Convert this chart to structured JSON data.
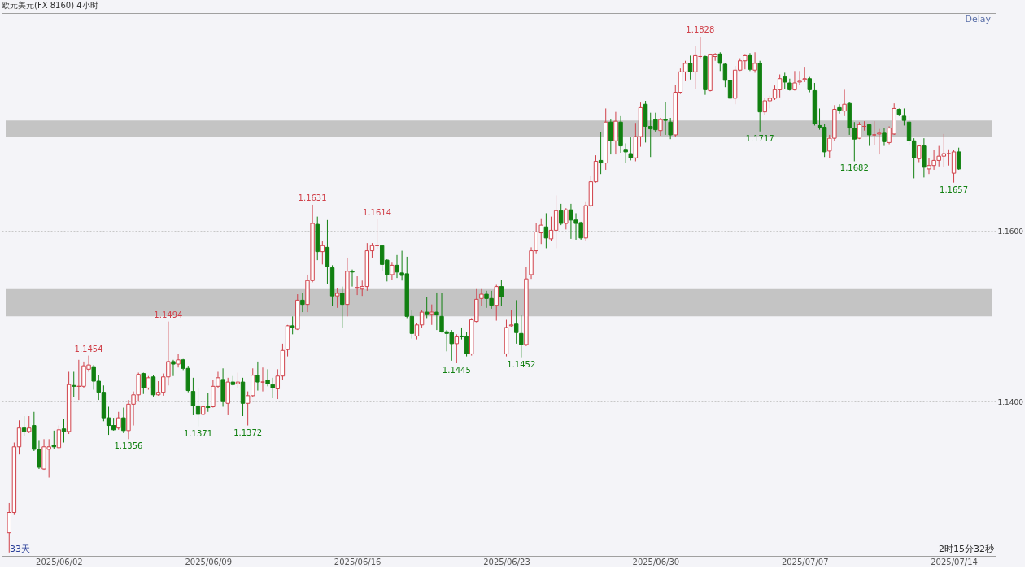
{
  "chart_data": {
    "type": "candlestick",
    "title": "欧元美元(FX 8160)  4小时",
    "categories": [
      null,
      null,
      null,
      null,
      null,
      null,
      null,
      null,
      null,
      null,
      "2025/06/02",
      null,
      null,
      null,
      null,
      null,
      null,
      null,
      null,
      null,
      null,
      null,
      null,
      null,
      null,
      null,
      null,
      null,
      null,
      null,
      null,
      null,
      null,
      null,
      null,
      null,
      null,
      null,
      null,
      null,
      "2025/06/09",
      null,
      null,
      null,
      null,
      null,
      null,
      null,
      null,
      null,
      null,
      null,
      null,
      null,
      null,
      null,
      null,
      null,
      null,
      null,
      null,
      null,
      null,
      null,
      null,
      null,
      null,
      null,
      null,
      null,
      "2025/06/16",
      null,
      null,
      null,
      null,
      null,
      null,
      null,
      null,
      null,
      null,
      null,
      null,
      null,
      null,
      null,
      null,
      null,
      null,
      null,
      null,
      null,
      null,
      null,
      null,
      null,
      null,
      null,
      null,
      null,
      "2025/06/23",
      null,
      null,
      null,
      null,
      null,
      null,
      null,
      null,
      null,
      null,
      null,
      null,
      null,
      null,
      null,
      null,
      null,
      null,
      null,
      null,
      null,
      null,
      null,
      null,
      null,
      null,
      null,
      null,
      null,
      "2025/06/30",
      null,
      null,
      null,
      null,
      null,
      null,
      null,
      null,
      null,
      null,
      null,
      null,
      null,
      null,
      null,
      null,
      null,
      null,
      null,
      null,
      null,
      null,
      null,
      null,
      null,
      null,
      null,
      null,
      null,
      "2025/07/07",
      null,
      null,
      null,
      null,
      null,
      null,
      null,
      null,
      null,
      null,
      null,
      null,
      null,
      null,
      null,
      null,
      null,
      null,
      null,
      null,
      null,
      null,
      null,
      null,
      null,
      null,
      null,
      null,
      null,
      "2025/07/14",
      null
    ],
    "ohlc": [
      [
        1.1246,
        1.1281,
        1.1223,
        1.127
      ],
      [
        1.127,
        1.1352,
        1.1267,
        1.1347
      ],
      [
        1.1347,
        1.1378,
        1.1338,
        1.1369
      ],
      [
        1.1369,
        1.1383,
        1.136,
        1.1365
      ],
      [
        1.1365,
        1.1383,
        1.1363,
        1.1369
      ],
      [
        1.1372,
        1.1388,
        1.1342,
        1.1344
      ],
      [
        1.1344,
        1.1354,
        1.1321,
        1.1323
      ],
      [
        1.1321,
        1.1356,
        1.132,
        1.1347
      ],
      [
        1.1344,
        1.1356,
        1.1311,
        1.1347
      ],
      [
        1.1349,
        1.1366,
        1.1344,
        1.1347
      ],
      [
        1.1346,
        1.1372,
        1.1345,
        1.1367
      ],
      [
        1.1368,
        1.138,
        1.1352,
        1.1365
      ],
      [
        1.1365,
        1.1435,
        1.1362,
        1.142
      ],
      [
        1.1419,
        1.1435,
        1.1405,
        1.1418
      ],
      [
        1.1418,
        1.1449,
        1.1402,
        1.1418
      ],
      [
        1.1418,
        1.1447,
        1.1416,
        1.1442
      ],
      [
        1.1438,
        1.1454,
        1.1435,
        1.1443
      ],
      [
        1.1441,
        1.1443,
        1.1414,
        1.1424
      ],
      [
        1.1424,
        1.1431,
        1.1402,
        1.1411
      ],
      [
        1.1411,
        1.1419,
        1.1377,
        1.1381
      ],
      [
        1.1381,
        1.1394,
        1.1361,
        1.1372
      ],
      [
        1.1372,
        1.1381,
        1.1366,
        1.1367
      ],
      [
        1.1369,
        1.1388,
        1.1367,
        1.1381
      ],
      [
        1.1381,
        1.1393,
        1.1363,
        1.1366
      ],
      [
        1.1366,
        1.1402,
        1.1356,
        1.1397
      ],
      [
        1.1397,
        1.1412,
        1.1372,
        1.1408
      ],
      [
        1.1408,
        1.1434,
        1.14,
        1.1432
      ],
      [
        1.1433,
        1.1434,
        1.1409,
        1.1416
      ],
      [
        1.1416,
        1.143,
        1.1414,
        1.1428
      ],
      [
        1.1429,
        1.1431,
        1.1406,
        1.1408
      ],
      [
        1.1408,
        1.1424,
        1.1407,
        1.1411
      ],
      [
        1.1411,
        1.1433,
        1.1407,
        1.1429
      ],
      [
        1.1429,
        1.1494,
        1.1419,
        1.1447
      ],
      [
        1.1447,
        1.1449,
        1.143,
        1.1444
      ],
      [
        1.1444,
        1.1456,
        1.144,
        1.1449
      ],
      [
        1.1449,
        1.145,
        1.1437,
        1.1439
      ],
      [
        1.1439,
        1.1442,
        1.1411,
        1.1413
      ],
      [
        1.1412,
        1.1428,
        1.1384,
        1.1395
      ],
      [
        1.1395,
        1.1416,
        1.1371,
        1.1385
      ],
      [
        1.1385,
        1.1395,
        1.1384,
        1.1394
      ],
      [
        1.1394,
        1.141,
        1.1388,
        1.1393
      ],
      [
        1.1394,
        1.1425,
        1.1393,
        1.1418
      ],
      [
        1.1418,
        1.1435,
        1.1416,
        1.1428
      ],
      [
        1.1426,
        1.1439,
        1.1394,
        1.14
      ],
      [
        1.1398,
        1.1428,
        1.1384,
        1.1423
      ],
      [
        1.1423,
        1.143,
        1.1419,
        1.142
      ],
      [
        1.1421,
        1.1434,
        1.1416,
        1.1423
      ],
      [
        1.1423,
        1.1428,
        1.1383,
        1.1398
      ],
      [
        1.1398,
        1.1412,
        1.1372,
        1.1407
      ],
      [
        1.1407,
        1.1439,
        1.1405,
        1.1431
      ],
      [
        1.1431,
        1.1447,
        1.1413,
        1.1423
      ],
      [
        1.1423,
        1.144,
        1.1412,
        1.1423
      ],
      [
        1.1425,
        1.1438,
        1.1418,
        1.1421
      ],
      [
        1.142,
        1.1428,
        1.1404,
        1.1416
      ],
      [
        1.1415,
        1.1438,
        1.1403,
        1.143
      ],
      [
        1.143,
        1.1468,
        1.1425,
        1.146
      ],
      [
        1.1461,
        1.149,
        1.1453,
        1.1489
      ],
      [
        1.1489,
        1.15,
        1.1479,
        1.1487
      ],
      [
        1.1485,
        1.1526,
        1.1484,
        1.1519
      ],
      [
        1.1519,
        1.1527,
        1.1505,
        1.1514
      ],
      [
        1.1514,
        1.1549,
        1.1505,
        1.1542
      ],
      [
        1.1542,
        1.1631,
        1.154,
        1.1609
      ],
      [
        1.1608,
        1.1617,
        1.1566,
        1.1576
      ],
      [
        1.1576,
        1.1588,
        1.1561,
        1.1583
      ],
      [
        1.1581,
        1.1613,
        1.1538,
        1.1558
      ],
      [
        1.1557,
        1.156,
        1.1512,
        1.1524
      ],
      [
        1.1524,
        1.1533,
        1.151,
        1.1527
      ],
      [
        1.1527,
        1.1535,
        1.1487,
        1.1514
      ],
      [
        1.1514,
        1.1569,
        1.15,
        1.1553
      ],
      [
        1.1553,
        1.1555,
        1.1535,
        1.1552
      ],
      [
        1.1533,
        1.1547,
        1.1525,
        1.1534
      ],
      [
        1.1532,
        1.1542,
        1.1524,
        1.1535
      ],
      [
        1.1535,
        1.1586,
        1.153,
        1.1577
      ],
      [
        1.1577,
        1.1586,
        1.1569,
        1.1583
      ],
      [
        1.1583,
        1.1614,
        1.1579,
        1.1583
      ],
      [
        1.1583,
        1.1584,
        1.1553,
        1.1561
      ],
      [
        1.1566,
        1.1567,
        1.1541,
        1.1549
      ],
      [
        1.1549,
        1.1563,
        1.1543,
        1.156
      ],
      [
        1.156,
        1.1572,
        1.1545,
        1.1552
      ],
      [
        1.1551,
        1.1577,
        1.1542,
        1.1548
      ],
      [
        1.155,
        1.157,
        1.1498,
        1.15
      ],
      [
        1.15,
        1.1507,
        1.1474,
        1.148
      ],
      [
        1.1477,
        1.1492,
        1.1473,
        1.149
      ],
      [
        1.149,
        1.1507,
        1.1487,
        1.1505
      ],
      [
        1.1505,
        1.1523,
        1.1498,
        1.1503
      ],
      [
        1.1503,
        1.1514,
        1.149,
        1.1505
      ],
      [
        1.1505,
        1.1528,
        1.1484,
        1.1502
      ],
      [
        1.15,
        1.1527,
        1.1481,
        1.1482
      ],
      [
        1.1482,
        1.1484,
        1.1459,
        1.148
      ],
      [
        1.1481,
        1.1484,
        1.1448,
        1.1468
      ],
      [
        1.1468,
        1.1479,
        1.1445,
        1.1476
      ],
      [
        1.1477,
        1.1487,
        1.1473,
        1.1476
      ],
      [
        1.1476,
        1.1482,
        1.1453,
        1.1456
      ],
      [
        1.1456,
        1.1498,
        1.1454,
        1.1496
      ],
      [
        1.1494,
        1.1532,
        1.1493,
        1.152
      ],
      [
        1.1521,
        1.1532,
        1.1512,
        1.1526
      ],
      [
        1.1526,
        1.153,
        1.151,
        1.1521
      ],
      [
        1.1521,
        1.153,
        1.1509,
        1.1513
      ],
      [
        1.1513,
        1.1537,
        1.1495,
        1.1535
      ],
      [
        1.1535,
        1.1543,
        1.1512,
        1.1523
      ],
      [
        1.1456,
        1.1496,
        1.1453,
        1.1487
      ],
      [
        1.1489,
        1.1507,
        1.1488,
        1.149
      ],
      [
        1.1491,
        1.1519,
        1.1468,
        1.1481
      ],
      [
        1.148,
        1.1501,
        1.1452,
        1.1467
      ],
      [
        1.1467,
        1.1558,
        1.1465,
        1.1544
      ],
      [
        1.1549,
        1.1581,
        1.1544,
        1.1577
      ],
      [
        1.1577,
        1.1609,
        1.1574,
        1.1599
      ],
      [
        1.1598,
        1.1615,
        1.1585,
        1.1607
      ],
      [
        1.1605,
        1.1621,
        1.158,
        1.1592
      ],
      [
        1.1591,
        1.1617,
        1.1589,
        1.1601
      ],
      [
        1.1601,
        1.1642,
        1.158,
        1.1624
      ],
      [
        1.1624,
        1.1632,
        1.1607,
        1.1609
      ],
      [
        1.1609,
        1.1627,
        1.1602,
        1.1625
      ],
      [
        1.1625,
        1.1632,
        1.1591,
        1.1613
      ],
      [
        1.1613,
        1.1621,
        1.159,
        1.1609
      ],
      [
        1.161,
        1.1611,
        1.159,
        1.1592
      ],
      [
        1.1592,
        1.1635,
        1.1589,
        1.163
      ],
      [
        1.163,
        1.1665,
        1.1628,
        1.1658
      ],
      [
        1.1658,
        1.1689,
        1.1657,
        1.1682
      ],
      [
        1.1683,
        1.1716,
        1.1667,
        1.168
      ],
      [
        1.168,
        1.1744,
        1.1672,
        1.1728
      ],
      [
        1.1728,
        1.1731,
        1.169,
        1.1706
      ],
      [
        1.1706,
        1.174,
        1.169,
        1.1729
      ],
      [
        1.1728,
        1.1735,
        1.1692,
        1.17
      ],
      [
        1.1696,
        1.1703,
        1.168,
        1.1693
      ],
      [
        1.1691,
        1.171,
        1.1683,
        1.1686
      ],
      [
        1.1686,
        1.1727,
        1.1682,
        1.1711
      ],
      [
        1.1711,
        1.1751,
        1.1699,
        1.1745
      ],
      [
        1.1749,
        1.1753,
        1.1704,
        1.1723
      ],
      [
        1.1723,
        1.1739,
        1.1687,
        1.172
      ],
      [
        1.1731,
        1.1739,
        1.1716,
        1.1719
      ],
      [
        1.1718,
        1.1733,
        1.1712,
        1.1731
      ],
      [
        1.1731,
        1.1752,
        1.1713,
        1.173
      ],
      [
        1.1728,
        1.1733,
        1.1708,
        1.1713
      ],
      [
        1.1713,
        1.1772,
        1.1711,
        1.1763
      ],
      [
        1.1763,
        1.1791,
        1.1761,
        1.1787
      ],
      [
        1.1787,
        1.18,
        1.1776,
        1.1797
      ],
      [
        1.1797,
        1.1806,
        1.1778,
        1.1787
      ],
      [
        1.1787,
        1.1817,
        1.1767,
        1.1806
      ],
      [
        1.1805,
        1.1828,
        1.1803,
        1.1805
      ],
      [
        1.1805,
        1.1806,
        1.176,
        1.1766
      ],
      [
        1.1765,
        1.1808,
        1.1764,
        1.1807
      ],
      [
        1.1805,
        1.1809,
        1.18,
        1.1807
      ],
      [
        1.1808,
        1.181,
        1.1788,
        1.1797
      ],
      [
        1.1796,
        1.1797,
        1.1769,
        1.1777
      ],
      [
        1.1777,
        1.1779,
        1.1747,
        1.1756
      ],
      [
        1.1756,
        1.1794,
        1.1749,
        1.1789
      ],
      [
        1.1789,
        1.1803,
        1.1788,
        1.18
      ],
      [
        1.18,
        1.1807,
        1.179,
        1.1806
      ],
      [
        1.1806,
        1.1809,
        1.1788,
        1.179
      ],
      [
        1.1789,
        1.181,
        1.1786,
        1.1797
      ],
      [
        1.1797,
        1.18,
        1.1717,
        1.174
      ],
      [
        1.174,
        1.1756,
        1.1736,
        1.1753
      ],
      [
        1.1753,
        1.1759,
        1.1744,
        1.1756
      ],
      [
        1.1756,
        1.1771,
        1.1754,
        1.1766
      ],
      [
        1.1766,
        1.1784,
        1.1757,
        1.1779
      ],
      [
        1.1781,
        1.1786,
        1.1767,
        1.1775
      ],
      [
        1.1774,
        1.1779,
        1.1765,
        1.1766
      ],
      [
        1.1766,
        1.1788,
        1.1765,
        1.1774
      ],
      [
        1.1775,
        1.1788,
        1.1772,
        1.1776
      ],
      [
        1.1778,
        1.1792,
        1.1775,
        1.1779
      ],
      [
        1.1779,
        1.1781,
        1.1763,
        1.1766
      ],
      [
        1.1765,
        1.1774,
        1.1724,
        1.1726
      ],
      [
        1.1724,
        1.1744,
        1.1719,
        1.1722
      ],
      [
        1.1722,
        1.1726,
        1.1687,
        1.1693
      ],
      [
        1.1694,
        1.1713,
        1.1686,
        1.1709
      ],
      [
        1.1709,
        1.1748,
        1.1706,
        1.1743
      ],
      [
        1.1745,
        1.1749,
        1.1738,
        1.1742
      ],
      [
        1.1741,
        1.1766,
        1.1735,
        1.1749
      ],
      [
        1.175,
        1.1751,
        1.1713,
        1.1721
      ],
      [
        1.1721,
        1.1728,
        1.1682,
        1.1708
      ],
      [
        1.1709,
        1.1728,
        1.1708,
        1.1725
      ],
      [
        1.1723,
        1.1729,
        1.1718,
        1.1723
      ],
      [
        1.1725,
        1.1726,
        1.17,
        1.1713
      ],
      [
        1.1713,
        1.1729,
        1.1701,
        1.1713
      ],
      [
        1.1714,
        1.172,
        1.169,
        1.1715
      ],
      [
        1.1715,
        1.1721,
        1.17,
        1.1705
      ],
      [
        1.1704,
        1.1723,
        1.1702,
        1.1721
      ],
      [
        1.1714,
        1.175,
        1.1713,
        1.1744
      ],
      [
        1.1743,
        1.1744,
        1.1735,
        1.1737
      ],
      [
        1.1735,
        1.1744,
        1.1724,
        1.173
      ],
      [
        1.1728,
        1.1735,
        1.1701,
        1.1706
      ],
      [
        1.1706,
        1.1709,
        1.1662,
        1.1686
      ],
      [
        1.1685,
        1.1701,
        1.1681,
        1.17
      ],
      [
        1.17,
        1.1709,
        1.1663,
        1.1675
      ],
      [
        1.1673,
        1.1686,
        1.1667,
        1.1677
      ],
      [
        1.1677,
        1.1695,
        1.1672,
        1.1683
      ],
      [
        1.1683,
        1.17,
        1.1676,
        1.1688
      ],
      [
        1.1688,
        1.1714,
        1.1675,
        1.1691
      ],
      [
        1.1691,
        1.1696,
        1.1677,
        1.1691
      ],
      [
        1.1668,
        1.1695,
        1.1657,
        1.1693
      ],
      [
        1.1693,
        1.1698,
        1.1672,
        1.1673
      ]
    ],
    "colors": [
      "#d0414a",
      "#d0414a",
      "#d0414a",
      "#118011",
      "#d0414a",
      "#118011",
      "#118011",
      "#d0414a",
      "#d0414a",
      "#118011",
      "#d0414a",
      "#118011",
      "#d0414a",
      "#118011",
      "#d0414a",
      "#d0414a",
      "#d0414a",
      "#118011",
      "#118011",
      "#118011",
      "#118011",
      "#118011",
      "#d0414a",
      "#118011",
      "#d0414a",
      "#d0414a",
      "#d0414a",
      "#118011",
      "#d0414a",
      "#118011",
      "#d0414a",
      "#d0414a",
      "#d0414a",
      "#118011",
      "#d0414a",
      "#118011",
      "#118011",
      "#118011",
      "#118011",
      "#d0414a",
      "#118011",
      "#d0414a",
      "#d0414a",
      "#118011",
      "#d0414a",
      "#118011",
      "#d0414a",
      "#118011",
      "#d0414a",
      "#d0414a",
      "#118011",
      "#d0414a",
      "#118011",
      "#118011",
      "#d0414a",
      "#d0414a",
      "#d0414a",
      "#118011",
      "#d0414a",
      "#118011",
      "#d0414a",
      "#d0414a",
      "#118011",
      "#d0414a",
      "#118011",
      "#118011",
      "#d0414a",
      "#118011",
      "#d0414a",
      "#118011",
      "#d0414a",
      "#d0414a",
      "#d0414a",
      "#d0414a",
      "#d0414a",
      "#118011",
      "#118011",
      "#d0414a",
      "#118011",
      "#118011",
      "#118011",
      "#118011",
      "#d0414a",
      "#d0414a",
      "#118011",
      "#d0414a",
      "#118011",
      "#118011",
      "#118011",
      "#118011",
      "#d0414a",
      "#118011",
      "#118011",
      "#d0414a",
      "#d0414a",
      "#d0414a",
      "#118011",
      "#118011",
      "#d0414a",
      "#118011",
      "#d0414a",
      "#d0414a",
      "#118011",
      "#118011",
      "#d0414a",
      "#d0414a",
      "#d0414a",
      "#d0414a",
      "#118011",
      "#d0414a",
      "#d0414a",
      "#118011",
      "#d0414a",
      "#118011",
      "#118011",
      "#118011",
      "#d0414a",
      "#d0414a",
      "#d0414a",
      "#118011",
      "#d0414a",
      "#118011",
      "#d0414a",
      "#118011",
      "#118011",
      "#118011",
      "#d0414a",
      "#d0414a",
      "#118011",
      "#118011",
      "#118011",
      "#d0414a",
      "#118011",
      "#118011",
      "#d0414a",
      "#d0414a",
      "#d0414a",
      "#118011",
      "#d0414a",
      "#d0414a",
      "#118011",
      "#d0414a",
      "#d0414a",
      "#118011",
      "#118011",
      "#118011",
      "#d0414a",
      "#d0414a",
      "#d0414a",
      "#118011",
      "#d0414a",
      "#118011",
      "#d0414a",
      "#d0414a",
      "#d0414a",
      "#d0414a",
      "#118011",
      "#118011",
      "#d0414a",
      "#d0414a",
      "#d0414a",
      "#118011",
      "#118011",
      "#118011",
      "#118011",
      "#d0414a",
      "#d0414a",
      "#118011",
      "#d0414a",
      "#118011",
      "#118011",
      "#d0414a",
      "#d0414a",
      "#118011",
      "#d0414a",
      "#d0414a",
      "#118011",
      "#d0414a",
      "#d0414a",
      "#118011",
      "#118011",
      "#118011",
      "#118011",
      "#d0414a",
      "#118011",
      "#d0414a",
      "#d0414a",
      "#d0414a",
      "#d0414a",
      "#d0414a",
      "#d0414a",
      "#118011"
    ],
    "ylim": [
      1.1219,
      1.1856
    ],
    "yticks": [
      {
        "value": 1.14,
        "label": "1.1400"
      },
      {
        "value": 1.16,
        "label": "1.1600"
      }
    ],
    "grid": "y",
    "bands": [
      {
        "axis": "y",
        "from": 1.15,
        "to": 1.1532,
        "color": "#c4c4c4"
      },
      {
        "axis": "y",
        "from": 1.171,
        "to": 1.173,
        "color": "#c4c4c4"
      }
    ],
    "annotations": [
      {
        "text": "1.1454",
        "y": 1.1454
      },
      {
        "text": "1.1356",
        "y": 1.1356
      },
      {
        "text": "1.1494",
        "y": 1.1494
      },
      {
        "text": "1.1371",
        "y": 1.1371
      },
      {
        "text": "1.1372",
        "y": 1.1372
      },
      {
        "text": "1.1631",
        "y": 1.1631
      },
      {
        "text": "1.1614",
        "y": 1.1614
      },
      {
        "text": "1.1445",
        "y": 1.1445
      },
      {
        "text": "1.1452",
        "y": 1.1452
      },
      {
        "text": "1.1828",
        "y": 1.1828
      },
      {
        "text": "1.1717",
        "y": 1.1717
      },
      {
        "text": "1.1682",
        "y": 1.1682
      },
      {
        "text": "1.1657",
        "y": 1.1657
      },
      "Delay",
      "33天",
      "2时15分32秒"
    ]
  }
}
